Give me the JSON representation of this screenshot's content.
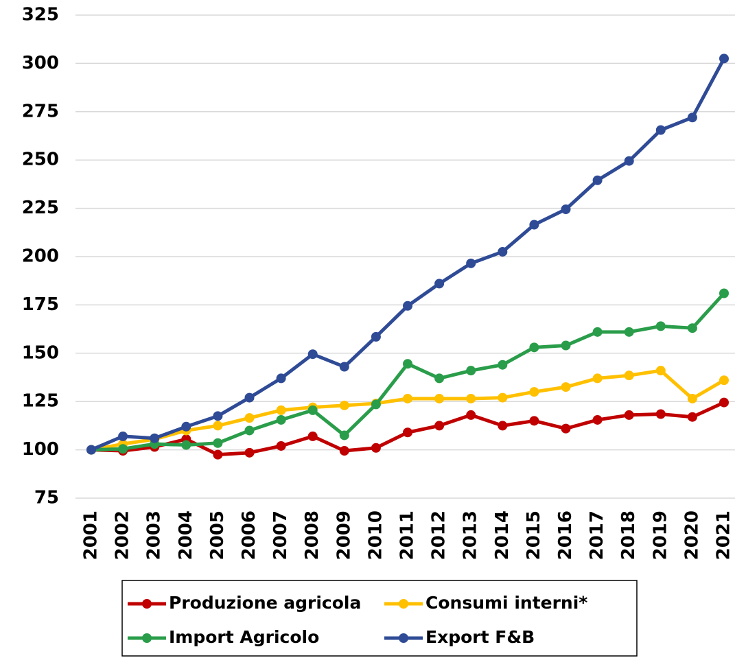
{
  "chart_data": {
    "type": "line",
    "categories": [
      "2001",
      "2002",
      "2003",
      "2004",
      "2005",
      "2006",
      "2007",
      "2008",
      "2009",
      "2010",
      "2011",
      "2012",
      "2013",
      "2014",
      "2015",
      "2016",
      "2017",
      "2018",
      "2019",
      "2020",
      "2021"
    ],
    "series": [
      {
        "name": "Produzione agricola",
        "color": "#c00000",
        "values": [
          100,
          99.5,
          101.5,
          105.5,
          97.5,
          98.5,
          102,
          107,
          99.5,
          101,
          109,
          112.5,
          118,
          112.5,
          115,
          111,
          115.5,
          118,
          118.5,
          117,
          124.5
        ]
      },
      {
        "name": "Consumi interni*",
        "color": "#ffc000",
        "values": [
          100,
          103,
          105.5,
          110,
          112.5,
          116.5,
          120.5,
          122,
          123,
          124,
          126.5,
          126.5,
          126.5,
          127,
          130,
          132.5,
          137,
          138.5,
          141,
          126.5,
          136
        ]
      },
      {
        "name": "Import Agricolo",
        "color": "#2a9d4a",
        "values": [
          100,
          100.5,
          103,
          102.5,
          103.5,
          110,
          115.5,
          120.5,
          107.5,
          123.5,
          144.5,
          137,
          141,
          144,
          153,
          154,
          161,
          161,
          164,
          163,
          181
        ]
      },
      {
        "name": "Export F&B",
        "color": "#2f4b96",
        "values": [
          100,
          107,
          106,
          112,
          117.5,
          127,
          137,
          149.5,
          143,
          158.5,
          174.5,
          186,
          196.5,
          202.5,
          216.5,
          224.5,
          239.5,
          249.5,
          265.5,
          272,
          302.5
        ]
      }
    ],
    "ylim": [
      75,
      325
    ],
    "yticks": [
      75,
      100,
      125,
      150,
      175,
      200,
      225,
      250,
      275,
      300,
      325
    ],
    "grid": true,
    "legend": "bottom"
  }
}
